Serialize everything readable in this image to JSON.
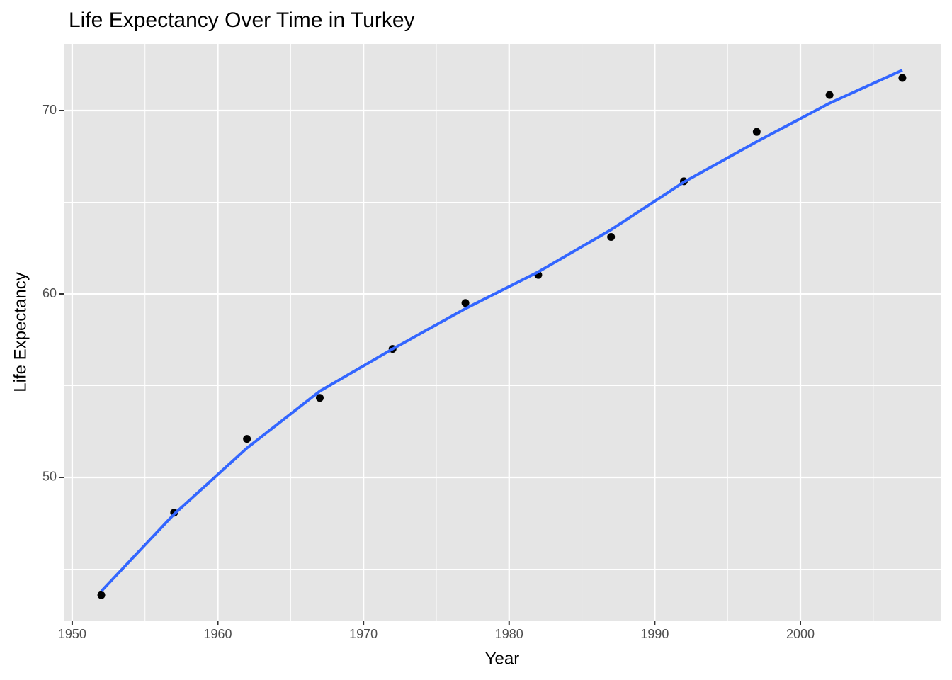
{
  "chart_data": {
    "type": "scatter",
    "title": "Life Expectancy Over Time in Turkey",
    "x_label": "Year",
    "y_label": "Life Expectancy",
    "xlim": [
      1949.42,
      2009.63
    ],
    "ylim": [
      42.2,
      73.63
    ],
    "xticks": [
      1950,
      1960,
      1970,
      1980,
      1990,
      2000
    ],
    "yticks": [
      50,
      60,
      70
    ],
    "x_minor_ticks": [
      1955,
      1965,
      1975,
      1985,
      1995,
      2005
    ],
    "y_minor_ticks": [
      45,
      55,
      65
    ],
    "grid": true,
    "points": {
      "color": "#000000",
      "x": [
        1952,
        1957,
        1962,
        1967,
        1972,
        1977,
        1982,
        1987,
        1992,
        1997,
        2002,
        2007
      ],
      "y": [
        43.585,
        48.079,
        52.098,
        54.336,
        57.005,
        59.507,
        61.036,
        63.108,
        66.146,
        68.835,
        70.845,
        71.777
      ]
    },
    "smooth": {
      "color": "#3366ff",
      "x": [
        1952,
        1957,
        1962,
        1967,
        1972,
        1977,
        1982,
        1987,
        1992,
        1997,
        2002,
        2007
      ],
      "y": [
        43.8,
        48.0,
        51.6,
        54.7,
        57.0,
        59.2,
        61.2,
        63.5,
        66.1,
        68.3,
        70.4,
        72.2
      ]
    }
  }
}
